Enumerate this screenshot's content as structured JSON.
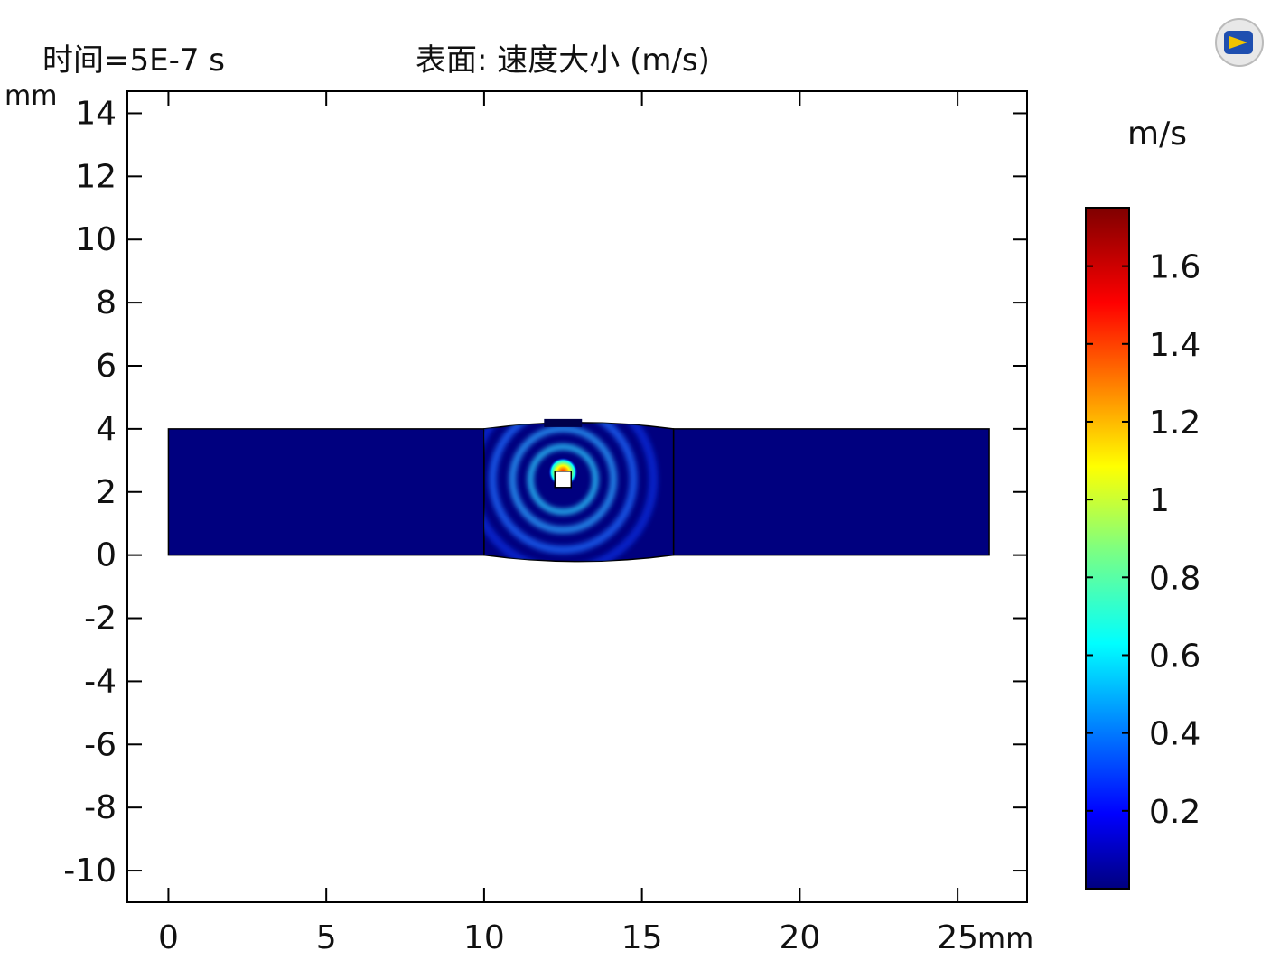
{
  "chart_data": {
    "type": "heatmap",
    "time_label": "时间=5E-7 s",
    "title": "表面: 速度大小 (m/s)",
    "x_unit": "mm",
    "y_unit": "mm",
    "xlim": [
      -1.3,
      27.2
    ],
    "ylim": [
      -11,
      14.7
    ],
    "x_ticks": [
      0,
      5,
      10,
      15,
      20,
      25
    ],
    "y_ticks": [
      14,
      12,
      10,
      8,
      6,
      4,
      2,
      0,
      -2,
      -4,
      -6,
      -8,
      -10
    ],
    "x_tick_labels": [
      "0",
      "5",
      "10",
      "15",
      "20",
      "25"
    ],
    "y_tick_labels": [
      "14",
      "12",
      "10",
      "8",
      "6",
      "4",
      "2",
      "0",
      "-2",
      "-4",
      "-6",
      "-8",
      "-10"
    ],
    "grid": false,
    "geometry": {
      "plate_x": [
        0,
        26
      ],
      "plate_y": [
        0,
        4
      ],
      "weld_x": [
        10,
        16
      ],
      "weld_crown_top_y": 4.2,
      "weld_root_bottom_y": -0.2,
      "source_point": [
        12.5,
        2.4
      ]
    },
    "colorbar": {
      "unit": "m/s",
      "min": 0,
      "max": 1.75,
      "ticks": [
        0.2,
        0.4,
        0.6,
        0.8,
        1,
        1.2,
        1.4,
        1.6
      ],
      "tick_labels": [
        "0.2",
        "0.4",
        "0.6",
        "0.8",
        "1",
        "1.2",
        "1.4",
        "1.6"
      ],
      "colormap": [
        "#00007f",
        "#0000ff",
        "#00ffff",
        "#ffff00",
        "#ff0000",
        "#7f0000"
      ]
    }
  },
  "colors": {
    "background_field": "#00007f",
    "axis": "#000000"
  },
  "icons": {
    "logo": "comsol-logo-icon"
  }
}
